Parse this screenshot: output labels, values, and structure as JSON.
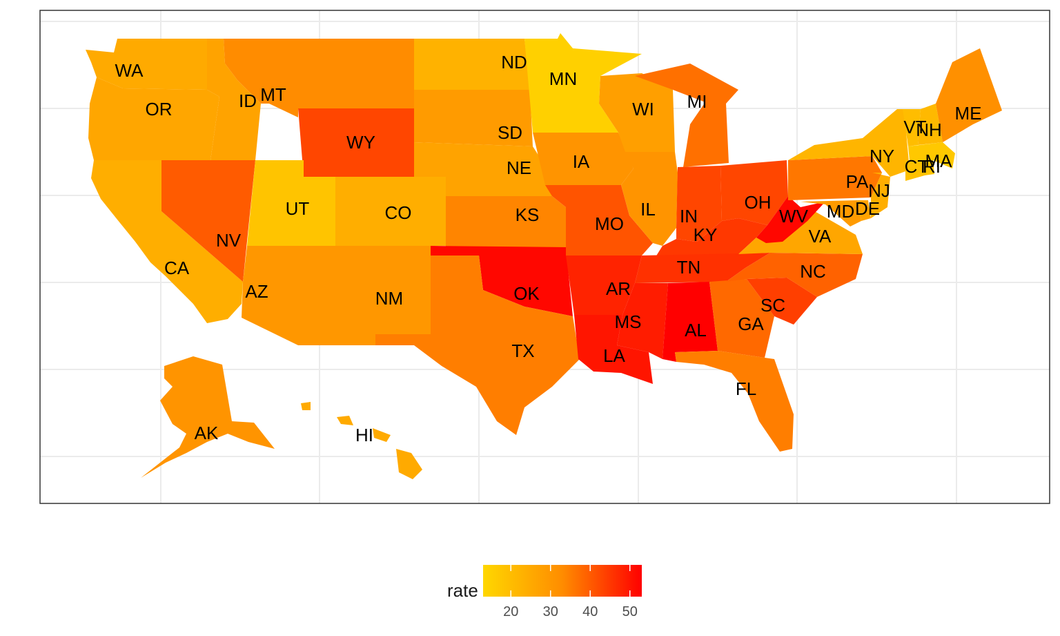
{
  "legend": {
    "title": "rate",
    "breaks": [
      20,
      30,
      40,
      50
    ],
    "min": 13,
    "max": 53,
    "low_color": "#ffd700",
    "mid_color": "#ff8c00",
    "high_color": "#ff0000"
  },
  "states": [
    {
      "abbr": "WA",
      "rate": 25
    },
    {
      "abbr": "OR",
      "rate": 26
    },
    {
      "abbr": "CA",
      "rate": 24
    },
    {
      "abbr": "ID",
      "rate": 27
    },
    {
      "abbr": "MT",
      "rate": 33
    },
    {
      "abbr": "WY",
      "rate": 43
    },
    {
      "abbr": "NV",
      "rate": 40
    },
    {
      "abbr": "UT",
      "rate": 18
    },
    {
      "abbr": "AZ",
      "rate": 30
    },
    {
      "abbr": "CO",
      "rate": 24
    },
    {
      "abbr": "NM",
      "rate": 30
    },
    {
      "abbr": "ND",
      "rate": 23
    },
    {
      "abbr": "SD",
      "rate": 29
    },
    {
      "abbr": "NE",
      "rate": 27
    },
    {
      "abbr": "KS",
      "rate": 34
    },
    {
      "abbr": "OK",
      "rate": 52
    },
    {
      "abbr": "TX",
      "rate": 35
    },
    {
      "abbr": "MN",
      "rate": 15
    },
    {
      "abbr": "IA",
      "rate": 31
    },
    {
      "abbr": "MO",
      "rate": 41
    },
    {
      "abbr": "AR",
      "rate": 48
    },
    {
      "abbr": "LA",
      "rate": 50
    },
    {
      "abbr": "WI",
      "rate": 28
    },
    {
      "abbr": "IL",
      "rate": 31
    },
    {
      "abbr": "MI",
      "rate": 37
    },
    {
      "abbr": "IN",
      "rate": 43
    },
    {
      "abbr": "OH",
      "rate": 43
    },
    {
      "abbr": "KY",
      "rate": 45
    },
    {
      "abbr": "TN",
      "rate": 46
    },
    {
      "abbr": "MS",
      "rate": 49
    },
    {
      "abbr": "AL",
      "rate": 53
    },
    {
      "abbr": "GA",
      "rate": 38
    },
    {
      "abbr": "FL",
      "rate": 35
    },
    {
      "abbr": "SC",
      "rate": 44
    },
    {
      "abbr": "NC",
      "rate": 39
    },
    {
      "abbr": "VA",
      "rate": 26
    },
    {
      "abbr": "WV",
      "rate": 52
    },
    {
      "abbr": "PA",
      "rate": 36
    },
    {
      "abbr": "NY",
      "rate": 22
    },
    {
      "abbr": "VT",
      "rate": 20
    },
    {
      "abbr": "NH",
      "rate": 21
    },
    {
      "abbr": "ME",
      "rate": 32
    },
    {
      "abbr": "MA",
      "rate": 17
    },
    {
      "abbr": "CT",
      "rate": 19
    },
    {
      "abbr": "RI",
      "rate": 18
    },
    {
      "abbr": "NJ",
      "rate": 24
    },
    {
      "abbr": "DE",
      "rate": 27
    },
    {
      "abbr": "MD",
      "rate": 29
    },
    {
      "abbr": "AK",
      "rate": 31
    },
    {
      "abbr": "HI",
      "rate": 25
    }
  ]
}
